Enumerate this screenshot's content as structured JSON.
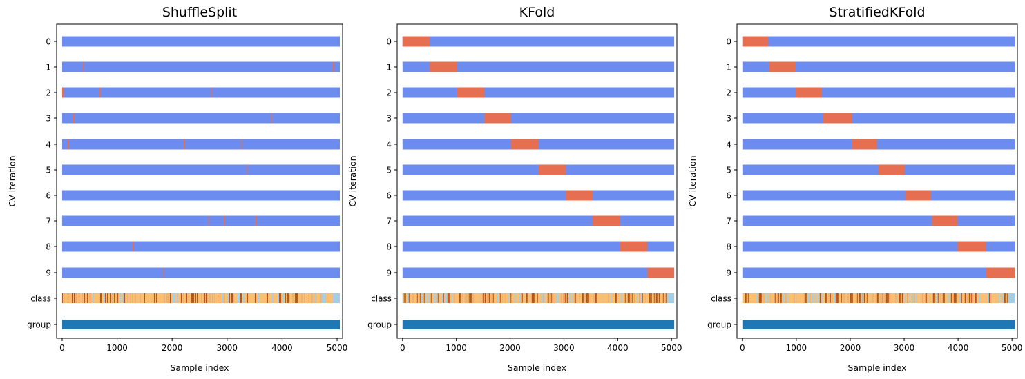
{
  "colors": {
    "train": "#6c8cef",
    "test": "#e76f51",
    "group": "#1f77b4",
    "class_a": "#a6cee3",
    "class_b": "#fdbf6f",
    "class_c": "#b5531a",
    "class_d": "#e8b27a"
  },
  "chart_data": [
    {
      "type": "bar",
      "title": "ShuffleSplit",
      "xlabel": "Sample index",
      "ylabel": "CV iteration",
      "xlim": [
        -100,
        5100
      ],
      "xticks": [
        "0",
        "1000",
        "2000",
        "3000",
        "4000",
        "5000"
      ],
      "yticklabels": [
        "0",
        "1",
        "2",
        "3",
        "4",
        "5",
        "6",
        "7",
        "8",
        "9",
        "class",
        "group"
      ],
      "n_samples": 5050,
      "iterations": [
        {
          "label": "0",
          "test_segments": []
        },
        {
          "label": "1",
          "test_segments": [
            [
              380,
              400
            ],
            [
              4920,
              4940
            ]
          ]
        },
        {
          "label": "2",
          "test_segments": [
            [
              0,
              30
            ],
            [
              680,
              700
            ],
            [
              2700,
              2720
            ]
          ]
        },
        {
          "label": "3",
          "test_segments": [
            [
              200,
              220
            ],
            [
              3800,
              3820
            ]
          ]
        },
        {
          "label": "4",
          "test_segments": [
            [
              100,
              120
            ],
            [
              2200,
              2230
            ],
            [
              3250,
              3270
            ]
          ]
        },
        {
          "label": "5",
          "test_segments": [
            [
              3350,
              3370
            ]
          ]
        },
        {
          "label": "6",
          "test_segments": []
        },
        {
          "label": "7",
          "test_segments": [
            [
              2650,
              2670
            ],
            [
              2930,
              2950
            ],
            [
              3510,
              3530
            ]
          ]
        },
        {
          "label": "8",
          "test_segments": [
            [
              1280,
              1300
            ]
          ]
        },
        {
          "label": "9",
          "test_segments": [
            [
              1840,
              1860
            ]
          ]
        }
      ]
    },
    {
      "type": "bar",
      "title": "KFold",
      "xlabel": "Sample index",
      "ylabel": "CV iteration",
      "xlim": [
        -100,
        5100
      ],
      "xticks": [
        "0",
        "1000",
        "2000",
        "3000",
        "4000",
        "5000"
      ],
      "yticklabels": [
        "0",
        "1",
        "2",
        "3",
        "4",
        "5",
        "6",
        "7",
        "8",
        "9",
        "class",
        "group"
      ],
      "n_samples": 5050,
      "iterations": [
        {
          "label": "0",
          "test_segments": [
            [
              0,
              505
            ]
          ]
        },
        {
          "label": "1",
          "test_segments": [
            [
              505,
              1010
            ]
          ]
        },
        {
          "label": "2",
          "test_segments": [
            [
              1010,
              1515
            ]
          ]
        },
        {
          "label": "3",
          "test_segments": [
            [
              1515,
              2020
            ]
          ]
        },
        {
          "label": "4",
          "test_segments": [
            [
              2020,
              2525
            ]
          ]
        },
        {
          "label": "5",
          "test_segments": [
            [
              2525,
              3030
            ]
          ]
        },
        {
          "label": "6",
          "test_segments": [
            [
              3030,
              3535
            ]
          ]
        },
        {
          "label": "7",
          "test_segments": [
            [
              3535,
              4040
            ]
          ]
        },
        {
          "label": "8",
          "test_segments": [
            [
              4040,
              4545
            ]
          ]
        },
        {
          "label": "9",
          "test_segments": [
            [
              4545,
              5050
            ]
          ]
        }
      ]
    },
    {
      "type": "bar",
      "title": "StratifiedKFold",
      "xlabel": "Sample index",
      "ylabel": "CV iteration",
      "xlim": [
        -100,
        5100
      ],
      "xticks": [
        "0",
        "1000",
        "2000",
        "3000",
        "4000",
        "5000"
      ],
      "yticklabels": [
        "0",
        "1",
        "2",
        "3",
        "4",
        "5",
        "6",
        "7",
        "8",
        "9",
        "class",
        "group"
      ],
      "n_samples": 5050,
      "iterations": [
        {
          "label": "0",
          "test_segments": [
            [
              0,
              480
            ]
          ]
        },
        {
          "label": "1",
          "test_segments": [
            [
              500,
              980
            ]
          ]
        },
        {
          "label": "2",
          "test_segments": [
            [
              990,
              1470
            ]
          ]
        },
        {
          "label": "3",
          "test_segments": [
            [
              1490,
              2030
            ]
          ]
        },
        {
          "label": "4",
          "test_segments": [
            [
              2030,
              2500
            ]
          ]
        },
        {
          "label": "5",
          "test_segments": [
            [
              2520,
              3000
            ]
          ]
        },
        {
          "label": "6",
          "test_segments": [
            [
              3020,
              3500
            ]
          ]
        },
        {
          "label": "7",
          "test_segments": [
            [
              3510,
              3990
            ]
          ]
        },
        {
          "label": "8",
          "test_segments": [
            [
              3990,
              4510
            ]
          ]
        },
        {
          "label": "9",
          "test_segments": [
            [
              4520,
              5050
            ]
          ]
        }
      ]
    }
  ]
}
